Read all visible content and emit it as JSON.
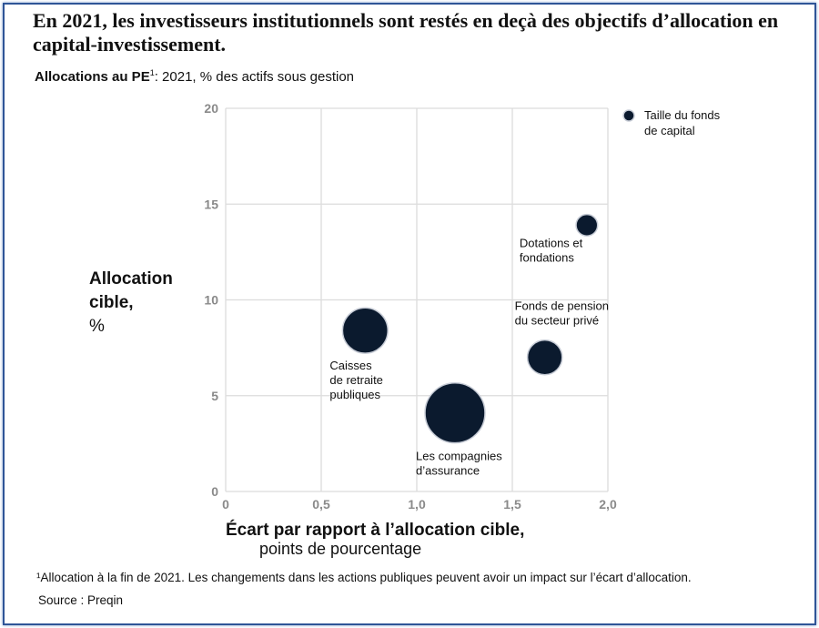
{
  "title": "En 2021, les investisseurs institutionnels sont restés en deçà des objectifs d’allocation en capital-investissement.",
  "subtitle": {
    "bold": "Allocations au PE",
    "sup": "1",
    "rest": ": 2021, % des actifs sous gestion"
  },
  "footnote": "¹Allocation à la fin de 2021. Les changements dans les actions publiques peuvent avoir un impact sur l’écart d’allocation.",
  "source": "Source : Preqin",
  "colors": {
    "bubble": "#0b1a2e",
    "grid": "#dcdcdc",
    "frame": "#2f5597"
  },
  "chart_data": {
    "type": "scatter",
    "subtype": "bubble",
    "xlabel_bold": "Écart par rapport à l’allocation cible,",
    "xlabel_rest": "points de pourcentage",
    "ylabel_bold_1": "Allocation",
    "ylabel_bold_2": "cible,",
    "ylabel_rest": "%",
    "xlim": [
      0,
      2.0
    ],
    "ylim": [
      0,
      20
    ],
    "x_ticks": [
      "0",
      "0,5",
      "1,0",
      "1,5",
      "2,0"
    ],
    "x_tick_values": [
      0,
      0.5,
      1.0,
      1.5,
      2.0
    ],
    "y_ticks": [
      "0",
      "5",
      "10",
      "15",
      "20"
    ],
    "y_tick_values": [
      0,
      5,
      10,
      15,
      20
    ],
    "grid": true,
    "legend": {
      "label_1": "Taille du fonds",
      "label_2": "de capital",
      "position": "top-right"
    },
    "points": [
      {
        "name": "Caisses de retraite publiques",
        "label_lines": [
          "Caisses",
          "de retraite",
          "publiques"
        ],
        "x": 0.73,
        "y": 8.4,
        "size": 3.4,
        "label_pos": "below-left"
      },
      {
        "name": "Les compagnies d’assurance",
        "label_lines": [
          "Les compagnies",
          "d’assurance"
        ],
        "x": 1.2,
        "y": 4.1,
        "size": 6.7,
        "label_pos": "below"
      },
      {
        "name": "Fonds de pension du secteur privé",
        "label_lines": [
          "Fonds de pension",
          "du secteur privé"
        ],
        "x": 1.67,
        "y": 7.0,
        "size": 1.7,
        "label_pos": "above"
      },
      {
        "name": "Dotations et fondations",
        "label_lines": [
          "Dotations et",
          "fondations"
        ],
        "x": 1.89,
        "y": 13.9,
        "size": 0.4,
        "label_pos": "below-left"
      }
    ]
  }
}
